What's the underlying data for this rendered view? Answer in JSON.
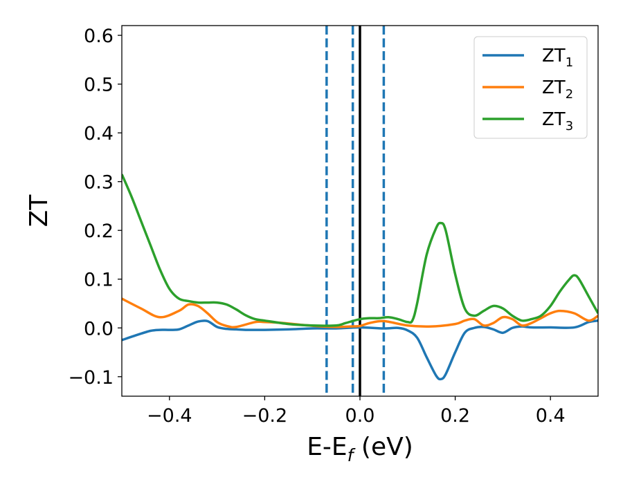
{
  "chart_data": {
    "type": "line",
    "title": "",
    "xlabel": {
      "base": "E-E",
      "sub": "f",
      "unit": " (eV)"
    },
    "ylabel": "ZT",
    "xlim": [
      -0.5,
      0.5
    ],
    "ylim": [
      -0.14,
      0.62
    ],
    "x_ticks": [
      -0.4,
      -0.2,
      0.0,
      0.2,
      0.4
    ],
    "x_tick_labels": [
      "−0.4",
      "−0.2",
      "0.0",
      "0.2",
      "0.4"
    ],
    "y_ticks": [
      -0.1,
      0.0,
      0.1,
      0.2,
      0.3,
      0.4,
      0.5,
      0.6
    ],
    "y_tick_labels": [
      "−0.1",
      "0.0",
      "0.1",
      "0.2",
      "0.3",
      "0.4",
      "0.5",
      "0.6"
    ],
    "grid": false,
    "legend_position": "top-right",
    "vlines": [
      {
        "x": -0.07,
        "style": "dashed",
        "color": "#1f77b4"
      },
      {
        "x": -0.015,
        "style": "dashed",
        "color": "#1f77b4"
      },
      {
        "x": 0.05,
        "style": "dashed",
        "color": "#1f77b4"
      },
      {
        "x": 0.0,
        "style": "solid",
        "color": "#000000"
      }
    ],
    "series": [
      {
        "name": "ZT",
        "sub": "1",
        "color": "#1f77b4",
        "x": [
          -0.5,
          -0.47,
          -0.44,
          -0.42,
          -0.4,
          -0.38,
          -0.36,
          -0.34,
          -0.32,
          -0.3,
          -0.28,
          -0.26,
          -0.24,
          -0.2,
          -0.15,
          -0.1,
          -0.05,
          0.0,
          0.05,
          0.08,
          0.1,
          0.12,
          0.14,
          0.16,
          0.17,
          0.18,
          0.2,
          0.22,
          0.24,
          0.26,
          0.28,
          0.3,
          0.32,
          0.34,
          0.36,
          0.4,
          0.45,
          0.48,
          0.5
        ],
        "y": [
          -0.025,
          -0.015,
          -0.006,
          -0.004,
          -0.004,
          -0.003,
          0.005,
          0.013,
          0.014,
          0.002,
          -0.002,
          -0.003,
          -0.004,
          -0.004,
          -0.003,
          -0.001,
          -0.001,
          0.001,
          -0.001,
          0.0,
          -0.005,
          -0.02,
          -0.06,
          -0.098,
          -0.105,
          -0.095,
          -0.05,
          -0.01,
          0.0,
          0.002,
          -0.003,
          -0.01,
          0.0,
          0.003,
          0.001,
          0.001,
          0.001,
          0.012,
          0.015
        ]
      },
      {
        "name": "ZT",
        "sub": "2",
        "color": "#ff7f0e",
        "x": [
          -0.5,
          -0.46,
          -0.42,
          -0.38,
          -0.36,
          -0.34,
          -0.32,
          -0.3,
          -0.28,
          -0.26,
          -0.22,
          -0.2,
          -0.16,
          -0.12,
          -0.08,
          -0.05,
          -0.02,
          0.0,
          0.02,
          0.05,
          0.1,
          0.15,
          0.2,
          0.22,
          0.24,
          0.26,
          0.28,
          0.3,
          0.32,
          0.34,
          0.36,
          0.38,
          0.4,
          0.42,
          0.45,
          0.48,
          0.5
        ],
        "y": [
          0.06,
          0.04,
          0.022,
          0.035,
          0.048,
          0.045,
          0.03,
          0.012,
          0.004,
          0.002,
          0.012,
          0.012,
          0.01,
          0.006,
          0.003,
          0.002,
          0.003,
          0.004,
          0.01,
          0.014,
          0.005,
          0.003,
          0.008,
          0.015,
          0.018,
          0.005,
          0.01,
          0.022,
          0.018,
          0.005,
          0.01,
          0.02,
          0.03,
          0.035,
          0.03,
          0.015,
          0.025
        ]
      },
      {
        "name": "ZT",
        "sub": "3",
        "color": "#2ca02c",
        "x": [
          -0.5,
          -0.48,
          -0.46,
          -0.44,
          -0.42,
          -0.4,
          -0.38,
          -0.36,
          -0.34,
          -0.32,
          -0.3,
          -0.28,
          -0.26,
          -0.24,
          -0.22,
          -0.2,
          -0.15,
          -0.1,
          -0.05,
          -0.03,
          0.0,
          0.02,
          0.04,
          0.06,
          0.08,
          0.1,
          0.11,
          0.12,
          0.14,
          0.16,
          0.17,
          0.18,
          0.2,
          0.22,
          0.24,
          0.26,
          0.28,
          0.3,
          0.32,
          0.34,
          0.36,
          0.38,
          0.4,
          0.42,
          0.44,
          0.45,
          0.46,
          0.48,
          0.5
        ],
        "y": [
          0.315,
          0.27,
          0.22,
          0.17,
          0.12,
          0.08,
          0.06,
          0.055,
          0.052,
          0.052,
          0.052,
          0.048,
          0.038,
          0.026,
          0.018,
          0.015,
          0.008,
          0.005,
          0.005,
          0.01,
          0.018,
          0.02,
          0.02,
          0.022,
          0.018,
          0.012,
          0.015,
          0.05,
          0.15,
          0.205,
          0.215,
          0.2,
          0.11,
          0.04,
          0.025,
          0.035,
          0.045,
          0.04,
          0.025,
          0.015,
          0.018,
          0.025,
          0.045,
          0.075,
          0.1,
          0.108,
          0.1,
          0.065,
          0.03
        ]
      }
    ]
  }
}
